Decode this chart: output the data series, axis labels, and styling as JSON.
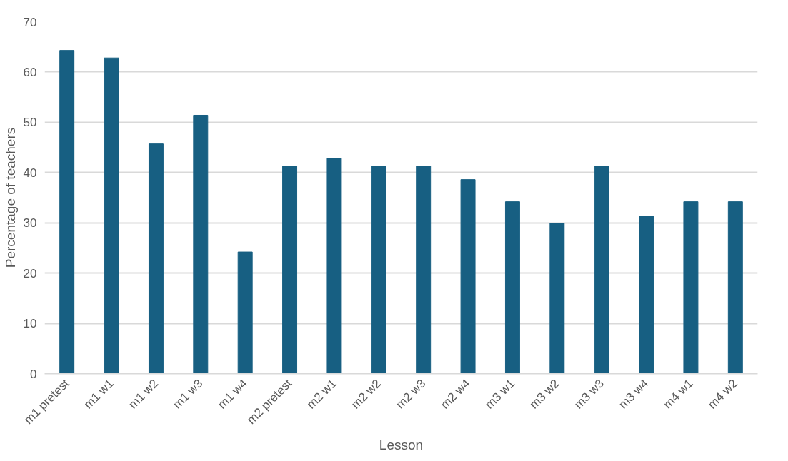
{
  "chart_data": {
    "type": "bar",
    "xlabel": "Lesson",
    "ylabel": "Percentage of teachers",
    "categories": [
      "m1 pretest",
      "m1 w1",
      "m1 w2",
      "m1 w3",
      "m1 w4",
      "m2 pretest",
      "m2 w1",
      "m2 w2",
      "m2 w3",
      "m2 w4",
      "m3 w1",
      "m3 w2",
      "m3 w3",
      "m3 w4",
      "m4 w1",
      "m4 w2"
    ],
    "values": [
      64.3,
      62.8,
      45.7,
      51.4,
      24.2,
      41.3,
      42.8,
      41.3,
      41.3,
      38.6,
      34.2,
      29.9,
      41.3,
      31.3,
      34.2,
      34.2
    ],
    "color": "#175f82",
    "ylim": [
      0,
      70
    ],
    "yticks": [
      0,
      10,
      20,
      30,
      40,
      50,
      60,
      70
    ],
    "grid": "y"
  }
}
